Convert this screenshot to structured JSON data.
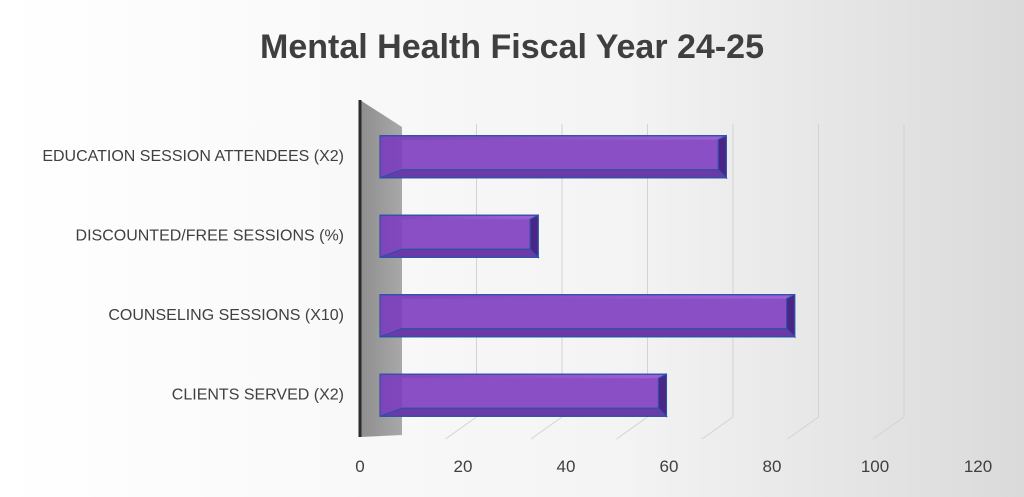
{
  "chart_data": {
    "type": "bar",
    "orientation": "horizontal",
    "title": "Mental Health Fiscal Year 24-25",
    "categories": [
      "EDUCATION SESSION ATTENDEES (X2)",
      "DISCOUNTED/FREE SESSIONS (%)",
      "COUNSELING SESSIONS (X10)",
      "CLIENTS SERVED (X2)"
    ],
    "values": [
      81,
      37,
      97,
      67
    ],
    "xlim": [
      0,
      120
    ],
    "xticks": [
      "0",
      "20",
      "40",
      "60",
      "80",
      "100",
      "120"
    ],
    "grid": true,
    "legend": "none",
    "style": "3d",
    "colors": {
      "bar_front": "#8A4FC4",
      "bar_top": "#B07FE6",
      "bar_side": "#4B2585",
      "bar_edge": "#2E4FA8",
      "wall": "#9C9C9C",
      "axis": "#2B2B2B",
      "title": "#3F3F3F",
      "label": "#404040",
      "grid": "#D3D3D3"
    }
  }
}
